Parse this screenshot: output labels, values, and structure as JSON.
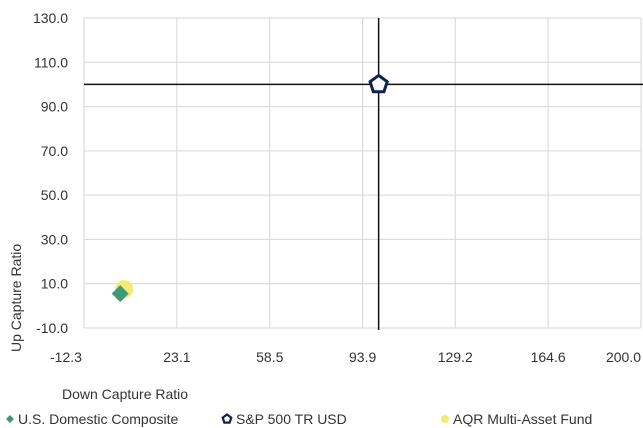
{
  "chart_data": {
    "type": "scatter",
    "title": "",
    "xlabel": "Down Capture Ratio",
    "ylabel": "Up Capture Ratio",
    "xlim": [
      -12.3,
      200.0
    ],
    "ylim": [
      -10.0,
      130.0
    ],
    "x_ticks": [
      "-12.3",
      "23.1",
      "58.5",
      "93.9",
      "129.2",
      "164.6",
      "200.0"
    ],
    "y_ticks": [
      "130.0",
      "110.0",
      "90.0",
      "70.0",
      "50.0",
      "30.0",
      "10.0",
      "-10.0"
    ],
    "grid": true,
    "reference_lines": {
      "x": 100,
      "y": 100
    },
    "legend_position": "bottom",
    "series": [
      {
        "name": "U.S. Domestic Composite",
        "marker": "diamond",
        "color": "#3d9a78",
        "points": [
          {
            "x": 1.5,
            "y": 5.5
          }
        ]
      },
      {
        "name": "S&P 500 TR USD",
        "marker": "pentagon",
        "color": "#0e2250",
        "points": [
          {
            "x": 100.0,
            "y": 100.0
          }
        ]
      },
      {
        "name": "AQR Multi-Asset Fund",
        "marker": "circle",
        "color": "#f2ea74",
        "points": [
          {
            "x": 3.0,
            "y": 7.5
          }
        ]
      }
    ]
  }
}
